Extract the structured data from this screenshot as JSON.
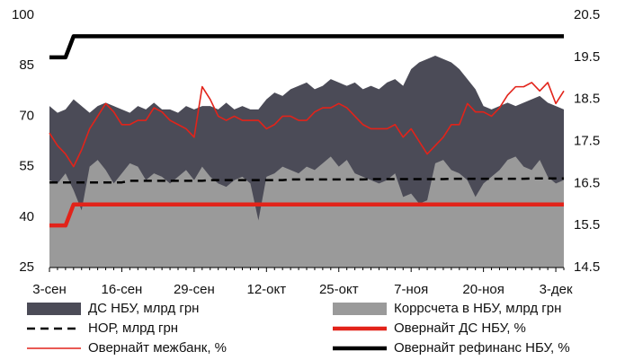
{
  "chart_data": {
    "type": "line",
    "categories": [
      "3-сен",
      null,
      null,
      null,
      null,
      null,
      null,
      null,
      null,
      "16-сен",
      null,
      null,
      null,
      null,
      null,
      null,
      null,
      null,
      "29-сен",
      null,
      null,
      null,
      null,
      null,
      null,
      null,
      null,
      "12-окт",
      null,
      null,
      null,
      null,
      null,
      null,
      null,
      null,
      "25-окт",
      null,
      null,
      null,
      null,
      null,
      null,
      null,
      null,
      "7-ноя",
      null,
      null,
      null,
      null,
      null,
      null,
      null,
      null,
      "20-ноя",
      null,
      null,
      null,
      null,
      null,
      null,
      null,
      null,
      "3-дек",
      null
    ],
    "ylim": [
      25,
      100
    ],
    "yticks": [
      25,
      40,
      55,
      70,
      85,
      100
    ],
    "y2lim": [
      14.5,
      20.5
    ],
    "y2ticks": [
      14.5,
      15.5,
      16.5,
      17.5,
      18.5,
      19.5,
      20.5
    ],
    "series": [
      {
        "name": "ДС НБУ, млрд грн",
        "kind": "area",
        "color": "#4b4b57",
        "values": [
          73,
          71,
          72,
          75,
          73,
          71,
          73,
          74,
          73,
          72,
          71,
          73,
          72,
          74,
          72,
          72,
          71,
          73,
          72,
          73,
          73,
          72,
          74,
          72,
          73,
          72,
          72,
          75,
          77,
          76,
          78,
          79,
          80,
          78,
          79,
          81,
          80,
          79,
          80,
          78,
          79,
          78,
          80,
          81,
          79,
          84,
          86,
          87,
          88,
          87,
          86,
          84,
          81,
          78,
          73,
          72,
          73,
          74,
          73,
          74,
          75,
          76,
          74,
          73,
          72
        ]
      },
      {
        "name": "Коррсчета в НБУ, млрд грн",
        "kind": "area",
        "color": "#9a9a9a",
        "values": [
          51,
          50,
          53,
          48,
          42,
          55,
          57,
          54,
          50,
          53,
          56,
          55,
          51,
          53,
          52,
          50,
          52,
          54,
          51,
          55,
          52,
          50,
          49,
          51,
          52,
          50,
          39,
          52,
          53,
          55,
          54,
          53,
          55,
          54,
          56,
          58,
          55,
          57,
          53,
          52,
          51,
          50,
          51,
          53,
          46,
          47,
          44,
          45,
          56,
          57,
          54,
          53,
          51,
          46,
          50,
          52,
          54,
          57,
          58,
          55,
          54,
          57,
          52,
          50,
          51
        ]
      },
      {
        "name": "НОР, млрд грн",
        "kind": "dashed",
        "color": "#000000",
        "values": [
          50.3,
          50.3,
          50.3,
          50.3,
          50.3,
          50.3,
          50.3,
          50.3,
          50.3,
          50.3,
          50.8,
          50.8,
          50.8,
          50.8,
          50.8,
          50.8,
          50.8,
          50.8,
          50.8,
          50.8,
          51.0,
          51.0,
          51.0,
          51.0,
          51.0,
          51.0,
          51.0,
          51.0,
          51.0,
          51.0,
          51.2,
          51.2,
          51.2,
          51.2,
          51.2,
          51.2,
          51.2,
          51.2,
          51.2,
          51.2,
          51.3,
          51.3,
          51.3,
          51.3,
          51.3,
          51.3,
          51.3,
          51.3,
          51.3,
          51.3,
          51.4,
          51.4,
          51.4,
          51.4,
          51.4,
          51.4,
          51.4,
          51.4,
          51.4,
          51.4,
          51.5,
          51.5,
          51.5,
          51.5,
          51.5
        ]
      },
      {
        "name": "Овернайт ДС НБУ, %",
        "kind": "thick",
        "axis": "y2",
        "color": "#e2231a",
        "values": [
          15.5,
          15.5,
          15.5,
          16.0,
          16.0,
          16.0,
          16.0,
          16.0,
          16.0,
          16.0,
          16.0,
          16.0,
          16.0,
          16.0,
          16.0,
          16.0,
          16.0,
          16.0,
          16.0,
          16.0,
          16.0,
          16.0,
          16.0,
          16.0,
          16.0,
          16.0,
          16.0,
          16.0,
          16.0,
          16.0,
          16.0,
          16.0,
          16.0,
          16.0,
          16.0,
          16.0,
          16.0,
          16.0,
          16.0,
          16.0,
          16.0,
          16.0,
          16.0,
          16.0,
          16.0,
          16.0,
          16.0,
          16.0,
          16.0,
          16.0,
          16.0,
          16.0,
          16.0,
          16.0,
          16.0,
          16.0,
          16.0,
          16.0,
          16.0,
          16.0,
          16.0,
          16.0,
          16.0,
          16.0,
          16.0
        ]
      },
      {
        "name": "Овернайт межбанк, %",
        "kind": "thin",
        "axis": "y2",
        "color": "#e2231a",
        "values": [
          17.7,
          17.4,
          17.2,
          16.9,
          17.3,
          17.8,
          18.1,
          18.4,
          18.2,
          17.9,
          17.9,
          18.0,
          18.0,
          18.3,
          18.2,
          18.0,
          17.9,
          17.8,
          17.6,
          18.8,
          18.5,
          18.1,
          18.0,
          18.1,
          18.0,
          18.0,
          18.0,
          17.8,
          17.9,
          18.1,
          18.1,
          18.0,
          18.0,
          18.2,
          18.3,
          18.3,
          18.4,
          18.3,
          18.1,
          17.9,
          17.8,
          17.8,
          17.8,
          17.9,
          17.6,
          17.8,
          17.5,
          17.2,
          17.4,
          17.6,
          17.9,
          17.9,
          18.4,
          18.2,
          18.2,
          18.1,
          18.3,
          18.6,
          18.8,
          18.8,
          18.9,
          18.7,
          18.9,
          18.4,
          18.7
        ]
      },
      {
        "name": "Овернайт рефинанс НБУ, %",
        "kind": "thick",
        "axis": "y2",
        "color": "#000000",
        "values": [
          19.5,
          19.5,
          19.5,
          20.0,
          20.0,
          20.0,
          20.0,
          20.0,
          20.0,
          20.0,
          20.0,
          20.0,
          20.0,
          20.0,
          20.0,
          20.0,
          20.0,
          20.0,
          20.0,
          20.0,
          20.0,
          20.0,
          20.0,
          20.0,
          20.0,
          20.0,
          20.0,
          20.0,
          20.0,
          20.0,
          20.0,
          20.0,
          20.0,
          20.0,
          20.0,
          20.0,
          20.0,
          20.0,
          20.0,
          20.0,
          20.0,
          20.0,
          20.0,
          20.0,
          20.0,
          20.0,
          20.0,
          20.0,
          20.0,
          20.0,
          20.0,
          20.0,
          20.0,
          20.0,
          20.0,
          20.0,
          20.0,
          20.0,
          20.0,
          20.0,
          20.0,
          20.0,
          20.0,
          20.0,
          20.0
        ]
      }
    ]
  }
}
